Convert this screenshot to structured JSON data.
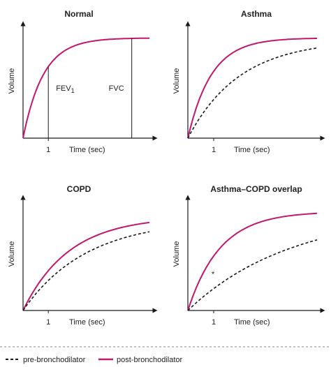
{
  "colors": {
    "post": "#c3176d",
    "pre": "#1a1a1a",
    "axis": "#1a1a1a"
  },
  "legend": {
    "pre_label": "pre-bronchodilator",
    "post_label": "post-bronchodilator"
  },
  "chart_data": [
    {
      "type": "line",
      "title": "Normal",
      "xlabel": "Time (sec)",
      "ylabel": "Volume",
      "xtick": "1",
      "xlim": [
        0,
        5
      ],
      "ylim": [
        0,
        1.1
      ],
      "series": [
        {
          "name": "post-bronchodilator",
          "style": "solid",
          "k": 1.25,
          "vmax": 1.0
        }
      ],
      "markers": [
        {
          "label": "FEV",
          "sub": "1",
          "x": 1
        },
        {
          "label": "FVC",
          "x": 4.3
        }
      ]
    },
    {
      "type": "line",
      "title": "Asthma",
      "xlabel": "Time (sec)",
      "ylabel": "Volume",
      "xtick": "1",
      "xlim": [
        0,
        5
      ],
      "ylim": [
        0,
        1.1
      ],
      "series": [
        {
          "name": "post-bronchodilator",
          "style": "solid",
          "k": 1.1,
          "vmax": 1.0
        },
        {
          "name": "pre-bronchodilator",
          "style": "dashed",
          "k": 0.5,
          "vmax": 0.98
        }
      ]
    },
    {
      "type": "line",
      "title": "COPD",
      "xlabel": "Time (sec)",
      "ylabel": "Volume",
      "xtick": "1",
      "xlim": [
        0,
        5
      ],
      "ylim": [
        0,
        1.1
      ],
      "series": [
        {
          "name": "post-bronchodilator",
          "style": "solid",
          "k": 0.55,
          "vmax": 0.95
        },
        {
          "name": "pre-bronchodilator",
          "style": "dashed",
          "k": 0.4,
          "vmax": 0.92
        }
      ]
    },
    {
      "type": "line",
      "title": "Asthma–COPD overlap",
      "xlabel": "Time (sec)",
      "ylabel": "Volume",
      "xtick": "1",
      "xlim": [
        0,
        5
      ],
      "ylim": [
        0,
        1.1
      ],
      "series": [
        {
          "name": "post-bronchodilator",
          "style": "solid",
          "k": 0.8,
          "vmax": 1.0
        },
        {
          "name": "pre-bronchodilator",
          "style": "dashed",
          "k": 0.25,
          "vmax": 1.0
        }
      ],
      "annotation": {
        "text": "*",
        "x": 1
      }
    }
  ]
}
